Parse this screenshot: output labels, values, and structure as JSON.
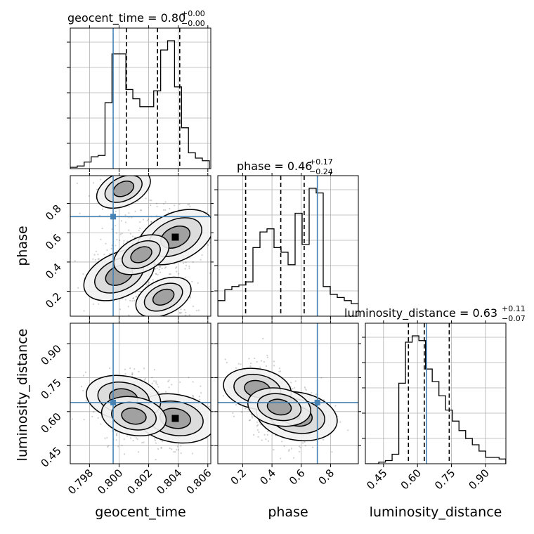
{
  "colors": {
    "truth": "#4682b4",
    "hist": "#000000",
    "grid": "#b0b0b0",
    "points": "#555555",
    "density": "#000000"
  },
  "chart_data": {
    "type": "corner",
    "parameters": [
      {
        "key": "geocent_time",
        "label": "geocent_time",
        "title": "geocent_time = 0.80",
        "title_plus": "+0.00",
        "title_minus": "−0.00",
        "range": [
          0.7967,
          0.8062
        ],
        "ticks": [
          0.798,
          0.8,
          0.802,
          0.804,
          0.806
        ],
        "tick_labels": [
          "0.798",
          "0.800",
          "0.802",
          "0.804",
          "0.806"
        ],
        "truth": 0.7996,
        "quantiles": [
          0.8005,
          0.8026,
          0.8041
        ],
        "hist_edges_start": 0.7967,
        "hist_bin_width": 0.00047,
        "hist_counts": [
          1,
          2,
          5,
          9,
          10,
          50,
          87,
          87,
          60,
          53,
          47,
          47,
          59,
          90,
          97,
          62,
          31,
          12,
          8,
          6
        ]
      },
      {
        "key": "phase",
        "label": "phase",
        "title": "phase = 0.46",
        "title_plus": "+0.17",
        "title_minus": "−0.24",
        "range": [
          0.03,
          0.99
        ],
        "ticks": [
          0.2,
          0.4,
          0.6,
          0.8
        ],
        "tick_labels": [
          "0.2",
          "0.4",
          "0.6",
          "0.8"
        ],
        "truth": 0.71,
        "quantiles": [
          0.22,
          0.46,
          0.62
        ],
        "hist_edges_start": 0.03,
        "hist_bin_width": 0.048,
        "hist_counts": [
          10,
          17,
          19,
          20,
          22,
          44,
          54,
          56,
          44,
          41,
          33,
          66,
          46,
          82,
          79,
          19,
          14,
          12,
          10,
          8
        ]
      },
      {
        "key": "luminosity_distance",
        "label": "luminosity_distance",
        "title": "luminosity_distance = 0.63",
        "title_plus": "+0.11",
        "title_minus": "−0.07",
        "range": [
          0.37,
          0.99
        ],
        "ticks": [
          0.45,
          0.6,
          0.75,
          0.9
        ],
        "tick_labels": [
          "0.45",
          "0.60",
          "0.75",
          "0.90"
        ],
        "truth": 0.64,
        "quantiles": [
          0.56,
          0.63,
          0.74
        ],
        "hist_edges_start": 0.37,
        "hist_bin_width": 0.0295,
        "hist_counts": [
          0,
          0,
          1,
          2,
          6,
          51,
          77,
          81,
          78,
          60,
          52,
          43,
          34,
          27,
          21,
          16,
          12,
          8,
          4,
          4,
          3
        ]
      }
    ],
    "pairs": [
      {
        "x": "geocent_time",
        "y": "phase",
        "density_peaks": [
          {
            "x": 0.8038,
            "y": 0.57,
            "weight": 1.0
          },
          {
            "x": 0.8,
            "y": 0.31,
            "weight": 0.8
          },
          {
            "x": 0.8015,
            "y": 0.45,
            "weight": 0.3
          },
          {
            "x": 0.803,
            "y": 0.16,
            "weight": 0.3
          },
          {
            "x": 0.8003,
            "y": 0.9,
            "weight": 0.25
          }
        ]
      },
      {
        "x": "geocent_time",
        "y": "luminosity_distance",
        "density_peaks": [
          {
            "x": 0.8038,
            "y": 0.57,
            "weight": 1.0
          },
          {
            "x": 0.8003,
            "y": 0.66,
            "weight": 0.8
          },
          {
            "x": 0.801,
            "y": 0.58,
            "weight": 0.5
          }
        ]
      },
      {
        "x": "phase",
        "y": "luminosity_distance",
        "density_peaks": [
          {
            "x": 0.57,
            "y": 0.58,
            "weight": 1.0
          },
          {
            "x": 0.3,
            "y": 0.7,
            "weight": 0.6
          },
          {
            "x": 0.45,
            "y": 0.62,
            "weight": 0.45
          }
        ]
      }
    ],
    "grid": true
  }
}
